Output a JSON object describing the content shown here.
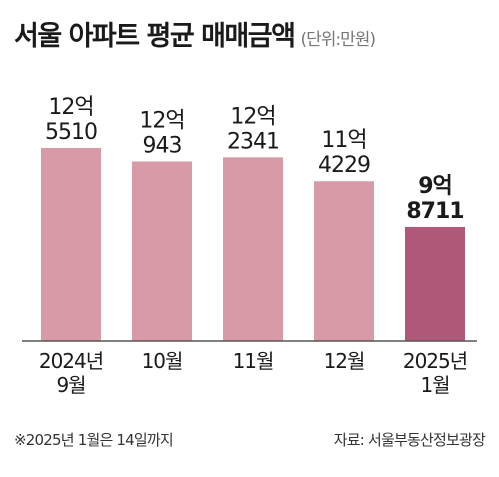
{
  "header": {
    "title": "서울 아파트 평균 매매금액",
    "unit": "(단위:만원)"
  },
  "footer": {
    "note": "※2025년 1월은 14일까지",
    "source": "자료: 서울부동산정보광장"
  },
  "colors": {
    "bar": "#d99aa8",
    "highlight": "#b05879",
    "baseline": "#555555"
  },
  "chart_data": {
    "type": "bar",
    "title": "서울 아파트 평균 매매금액",
    "unit": "(단위:만원)",
    "categories": [
      [
        "2024년",
        "9월"
      ],
      [
        "10월"
      ],
      [
        "11월"
      ],
      [
        "12월"
      ],
      [
        "2025년",
        "1월"
      ]
    ],
    "values": [
      125510,
      120943,
      122341,
      114229,
      98711
    ],
    "labels": [
      [
        "12억",
        "5510"
      ],
      [
        "12억",
        "943"
      ],
      [
        "12억",
        "2341"
      ],
      [
        "11억",
        "4229"
      ],
      [
        "9억",
        "8711"
      ]
    ],
    "highlight_index": 4,
    "ylim": [
      60000,
      125510
    ],
    "grid": false,
    "legend": "none"
  }
}
